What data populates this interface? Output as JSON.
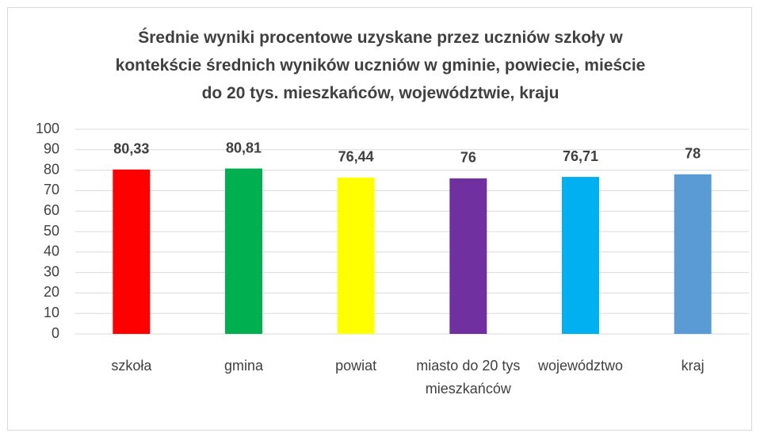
{
  "chart_data": {
    "type": "bar",
    "title": "Średnie wyniki procentowe uzyskane przez uczniów szkoły w kontekście średnich wyników uczniów w gminie, powiecie, mieście do 20 tys. mieszkańców, województwie, kraju",
    "categories": [
      "szkoła",
      "gmina",
      "powiat",
      "miasto do 20 tys mieszkańców",
      "województwo",
      "kraj"
    ],
    "values": [
      80.33,
      80.81,
      76.44,
      76,
      76.71,
      78
    ],
    "value_labels": [
      "80,33",
      "80,81",
      "76,44",
      "76",
      "76,71",
      "78"
    ],
    "colors": [
      "#ff0000",
      "#00b050",
      "#ffff00",
      "#7030a0",
      "#00b0f0",
      "#5b9bd5"
    ],
    "ylim": [
      0,
      100
    ],
    "yticks": [
      0,
      10,
      20,
      30,
      40,
      50,
      60,
      70,
      80,
      90,
      100
    ],
    "grid": true
  }
}
